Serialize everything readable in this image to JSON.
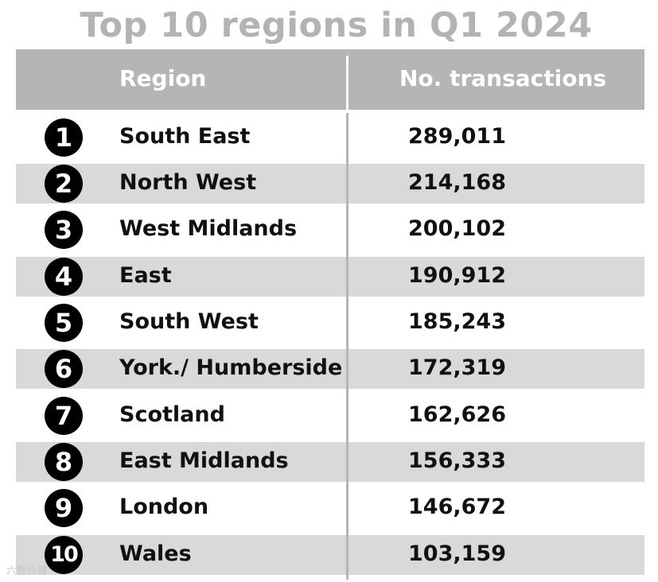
{
  "chart_data": {
    "type": "table",
    "title": "Top 10 regions in Q1 2024",
    "columns": [
      "Region",
      "No. transactions"
    ],
    "rows": [
      {
        "rank": "1",
        "region": "South East",
        "value": "289,011"
      },
      {
        "rank": "2",
        "region": "North West",
        "value": "214,168"
      },
      {
        "rank": "3",
        "region": "West Midlands",
        "value": "200,102"
      },
      {
        "rank": "4",
        "region": "East",
        "value": "190,912"
      },
      {
        "rank": "5",
        "region": "South West",
        "value": "185,243"
      },
      {
        "rank": "6",
        "region": "York./ Humberside",
        "value": "172,319"
      },
      {
        "rank": "7",
        "region": "Scotland",
        "value": "162,626"
      },
      {
        "rank": "8",
        "region": "East Midlands",
        "value": "156,333"
      },
      {
        "rank": "9",
        "region": "London",
        "value": "146,672"
      },
      {
        "rank": "10",
        "region": "Wales",
        "value": "103,159"
      }
    ]
  },
  "watermark": "六数传媒",
  "colors": {
    "title": "#b3b3b3",
    "header_bg": "#b5b5b5",
    "stripe": "#d9d9d9",
    "rank_badge": "#000000"
  }
}
